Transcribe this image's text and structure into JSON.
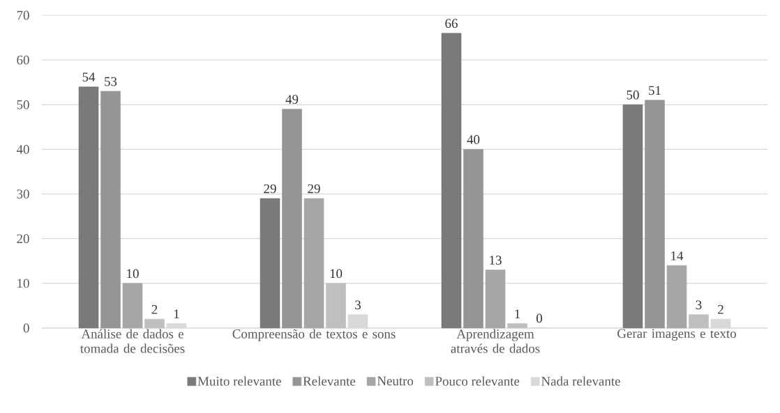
{
  "chart_data": {
    "type": "bar",
    "categories": [
      "Análise de dados e tomada de decisões",
      "Compreensão de textos e sons",
      "Aprendizagem através de dados",
      "Gerar imagens e texto"
    ],
    "series": [
      {
        "name": "Muito relevante",
        "color": "#7a7a7a",
        "values": [
          54,
          29,
          66,
          50
        ]
      },
      {
        "name": "Relevante",
        "color": "#959595",
        "values": [
          53,
          49,
          40,
          51
        ]
      },
      {
        "name": "Neutro",
        "color": "#a6a6a6",
        "values": [
          10,
          29,
          13,
          14
        ]
      },
      {
        "name": "Pouco relevante",
        "color": "#bfbfbf",
        "values": [
          2,
          10,
          1,
          3
        ]
      },
      {
        "name": "Nada relevante",
        "color": "#d9d9d9",
        "values": [
          1,
          3,
          0,
          2
        ]
      }
    ],
    "ylim": [
      0,
      70
    ],
    "yticks": [
      0,
      10,
      20,
      30,
      40,
      50,
      60,
      70
    ],
    "grid": "y",
    "legend": "bottom",
    "data_labels": true
  }
}
